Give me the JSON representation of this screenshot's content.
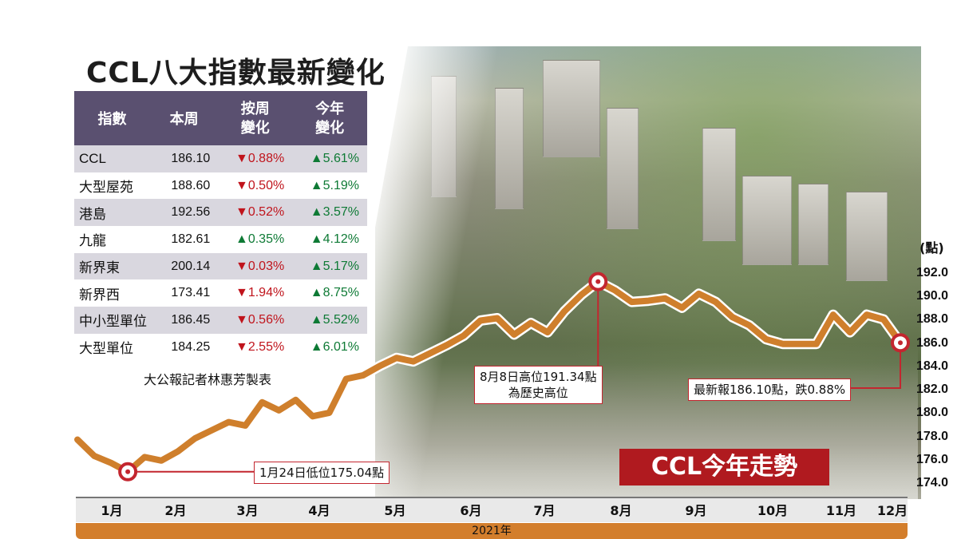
{
  "title": "CCL八大指數最新變化",
  "table": {
    "headers": [
      "指數",
      "本周",
      "按周\n變化",
      "今年\n變化"
    ],
    "rows": [
      {
        "name": "CCL",
        "week": "186.10",
        "wow": "▼0.88%",
        "wow_dir": "down",
        "ytd": "▲5.61%",
        "ytd_dir": "up"
      },
      {
        "name": "大型屋苑",
        "week": "188.60",
        "wow": "▼0.50%",
        "wow_dir": "down",
        "ytd": "▲5.19%",
        "ytd_dir": "up"
      },
      {
        "name": "港島",
        "week": "192.56",
        "wow": "▼0.52%",
        "wow_dir": "down",
        "ytd": "▲3.57%",
        "ytd_dir": "up"
      },
      {
        "name": "九龍",
        "week": "182.61",
        "wow": "▲0.35%",
        "wow_dir": "up",
        "ytd": "▲4.12%",
        "ytd_dir": "up"
      },
      {
        "name": "新界東",
        "week": "200.14",
        "wow": "▼0.03%",
        "wow_dir": "down",
        "ytd": "▲5.17%",
        "ytd_dir": "up"
      },
      {
        "name": "新界西",
        "week": "173.41",
        "wow": "▼1.94%",
        "wow_dir": "down",
        "ytd": "▲8.75%",
        "ytd_dir": "up"
      },
      {
        "name": "中小型單位",
        "week": "186.45",
        "wow": "▼0.56%",
        "wow_dir": "down",
        "ytd": "▲5.52%",
        "ytd_dir": "up"
      },
      {
        "name": "大型單位",
        "week": "184.25",
        "wow": "▼2.55%",
        "wow_dir": "down",
        "ytd": "▲6.01%",
        "ytd_dir": "up"
      }
    ],
    "credit": "大公報記者林惠芳製表"
  },
  "chart_data": {
    "type": "line",
    "title": "CCL今年走勢",
    "ylabel": "(點)",
    "xlabel": "2021年",
    "ylim": [
      173.0,
      193.0
    ],
    "yticks": [
      "192.0",
      "190.0",
      "188.0",
      "186.0",
      "184.0",
      "182.0",
      "180.0",
      "178.0",
      "176.0",
      "174.0"
    ],
    "months": [
      "1月",
      "2月",
      "3月",
      "4月",
      "5月",
      "6月",
      "7月",
      "8月",
      "9月",
      "10月",
      "11月",
      "12月"
    ],
    "series": [
      {
        "values": [
          177.8,
          176.4,
          175.8,
          175.04,
          176.3,
          176.0,
          176.8,
          177.9,
          178.6,
          179.3,
          179.0,
          181.0,
          180.3,
          181.2,
          179.8,
          180.1,
          183.0,
          183.3,
          184.1,
          184.8,
          184.5,
          185.2,
          185.9,
          186.7,
          188.0,
          188.2,
          186.8,
          187.8,
          187.0,
          188.8,
          190.2,
          191.34,
          190.6,
          189.6,
          189.7,
          189.9,
          189.1,
          190.3,
          189.6,
          188.3,
          187.6,
          186.4,
          186.0,
          186.0,
          186.0,
          188.5,
          187.0,
          188.5,
          188.1,
          186.1
        ],
        "color": "#cf7f2c"
      }
    ],
    "annotations": [
      {
        "text": "1月24日低位175.04點",
        "index": 3
      },
      {
        "text": "8月8日高位191.34點\n為歷史高位",
        "index": 31
      },
      {
        "text": "最新報186.10點，跌0.88%",
        "index": 49
      }
    ],
    "accent_color": "#c3262f",
    "line_color": "#cf7f2c"
  }
}
